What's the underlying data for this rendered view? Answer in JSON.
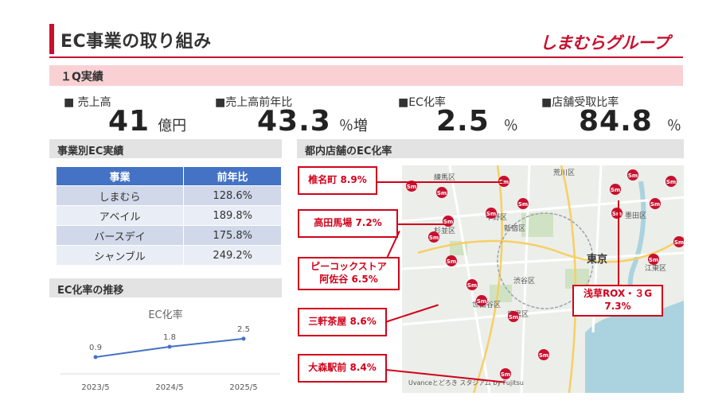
{
  "header": {
    "title": "EC事業の取り組み",
    "logo_text": "しまむらグループ",
    "accent_color": "#c8102e"
  },
  "q_band": {
    "label": "１Q実績"
  },
  "kpis": [
    {
      "label": "■ 売上高",
      "value": "41",
      "unit": "億円"
    },
    {
      "label": "■売上高前年比",
      "value": "43.3",
      "unit": "％増"
    },
    {
      "label": "■EC化率",
      "value": "2.5",
      "unit": "％"
    },
    {
      "label": "■店舗受取比率",
      "value": "84.8",
      "unit": "％"
    }
  ],
  "business_section": {
    "title": "事業別EC実績",
    "columns": [
      "事業",
      "前年比"
    ],
    "rows": [
      {
        "name": "しまむら",
        "value": "128.6%"
      },
      {
        "name": "アベイル",
        "value": "189.8%"
      },
      {
        "name": "バースデイ",
        "value": "175.8%"
      },
      {
        "name": "シャンブル",
        "value": "249.2%"
      }
    ]
  },
  "trend_section": {
    "title": "EC化率の推移"
  },
  "chart_data": {
    "type": "line",
    "title": "EC化率",
    "categories": [
      "2023/5",
      "2024/5",
      "2025/5"
    ],
    "series": [
      {
        "values": [
          0.9,
          1.8,
          2.5
        ]
      }
    ],
    "data_labels": [
      "0.9",
      "1.8",
      "2.5"
    ],
    "line_color": "#4472c4",
    "ylim": [
      0,
      3
    ],
    "grid": false
  },
  "map_section": {
    "title": "都内店舗のEC化率",
    "callouts": [
      {
        "id": "shiinamachi",
        "text": "椎名町 8.9%"
      },
      {
        "id": "takadanobaba",
        "text": "高田馬場 7.2%"
      },
      {
        "id": "peacock",
        "line1": "ピーコックストア",
        "line2": "阿佐谷 6.5%"
      },
      {
        "id": "sangenjaya",
        "text": "三軒茶屋 8.6%"
      },
      {
        "id": "omori",
        "text": "大森駅前 8.4%"
      },
      {
        "id": "asakusa",
        "line1": "浅草ROX・３G",
        "line2": "7.3%"
      }
    ],
    "map_labels": {
      "shinjuku": "新宿区",
      "nakano": "中野区",
      "suginami": "杉並区",
      "shibuya": "渋谷区",
      "tokyo": "東京",
      "setagaya": "世田谷区",
      "meguro": "目黒区",
      "sumida": "墨田区",
      "koto": "江東区",
      "itabashi": "練馬区",
      "arakawa": "荒川区",
      "credit": "Uvanceとどろき スタジアム by Fujitsu"
    },
    "pin_label": "Sm"
  }
}
